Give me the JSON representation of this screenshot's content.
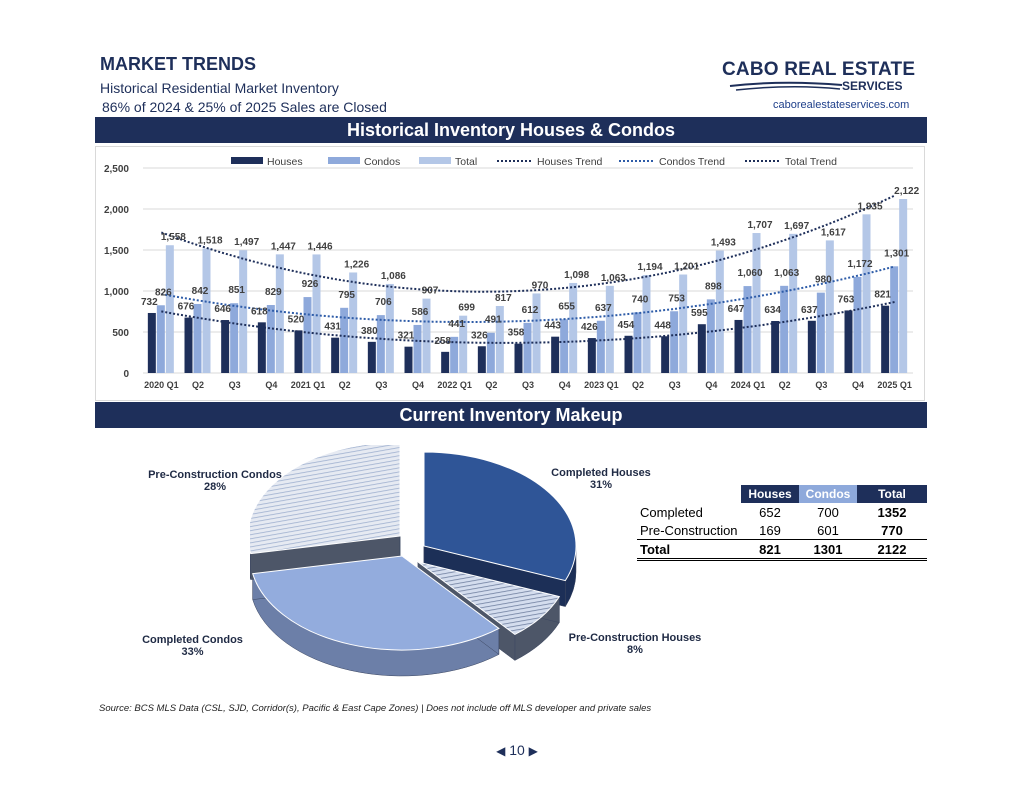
{
  "header": {
    "title": "MARKET TRENDS",
    "subtitle": "Historical Residential Market Inventory",
    "note": "86% of 2024 & 25% of 2025 Sales are Closed"
  },
  "logo": {
    "line1": "CABO REAL ESTATE",
    "line2": "SERVICES",
    "url": "caborealestateservices.com"
  },
  "sections": {
    "historical": "Historical Inventory Houses & Condos",
    "current": "Current Inventory Makeup"
  },
  "colors": {
    "navy": "#1e2f5a",
    "houses": "#1e2f5a",
    "condos": "#8ea9db",
    "total": "#b4c7e7"
  },
  "chart_data": [
    {
      "type": "bar",
      "title": "",
      "categories": [
        "2020 Q1",
        "Q2",
        "Q3",
        "Q4",
        "2021 Q1",
        "Q2",
        "Q3",
        "Q4",
        "2022 Q1",
        "Q2",
        "Q3",
        "Q4",
        "2023 Q1",
        "Q2",
        "Q3",
        "Q4",
        "2024 Q1",
        "Q2",
        "Q3",
        "Q4",
        "2025 Q1"
      ],
      "series": [
        {
          "name": "Houses",
          "values": [
            732,
            676,
            646,
            618,
            520,
            431,
            380,
            321,
            258,
            326,
            358,
            443,
            426,
            454,
            448,
            595,
            647,
            634,
            637,
            763,
            821
          ]
        },
        {
          "name": "Condos",
          "values": [
            826,
            842,
            851,
            829,
            926,
            795,
            706,
            586,
            441,
            491,
            612,
            655,
            637,
            740,
            753,
            898,
            1060,
            1063,
            980,
            1172,
            1301
          ]
        },
        {
          "name": "Total",
          "values": [
            1558,
            1518,
            1497,
            1447,
            1446,
            1226,
            1086,
            907,
            699,
            817,
            970,
            1098,
            1063,
            1194,
            1201,
            1493,
            1707,
            1697,
            1617,
            1935,
            2122
          ]
        }
      ],
      "trends": [
        {
          "name": "Houses Trend"
        },
        {
          "name": "Condos Trend"
        },
        {
          "name": "Total Trend"
        }
      ],
      "yticks": [
        "0",
        "500",
        "1,000",
        "1,500",
        "2,000",
        "2,500"
      ],
      "ylim": [
        0,
        2500
      ],
      "grid": true,
      "legend": "top"
    },
    {
      "type": "pie",
      "slices": [
        {
          "label": "Completed Houses",
          "value": 31,
          "pct": "31%"
        },
        {
          "label": "Pre-Construction Houses",
          "value": 8,
          "pct": "8%"
        },
        {
          "label": "Completed Condos",
          "value": 33,
          "pct": "33%"
        },
        {
          "label": "Pre-Construction Condos",
          "value": 28,
          "pct": "28%"
        }
      ]
    }
  ],
  "table": {
    "headers": [
      "Houses",
      "Condos",
      "Total"
    ],
    "rows": [
      {
        "label": "Completed",
        "houses": "652",
        "condos": "700",
        "total": "1352"
      },
      {
        "label": "Pre-Construction",
        "houses": "169",
        "condos": "601",
        "total": "770"
      }
    ],
    "total_row": {
      "label": "Total",
      "houses": "821",
      "condos": "1301",
      "total": "2122"
    }
  },
  "source": "Source:  BCS MLS Data (CSL, SJD, Corridor(s), Pacific & East Cape Zones) | Does not include off MLS developer and private sales",
  "pager": {
    "prev": "◀",
    "page": "10",
    "next": "▶"
  }
}
